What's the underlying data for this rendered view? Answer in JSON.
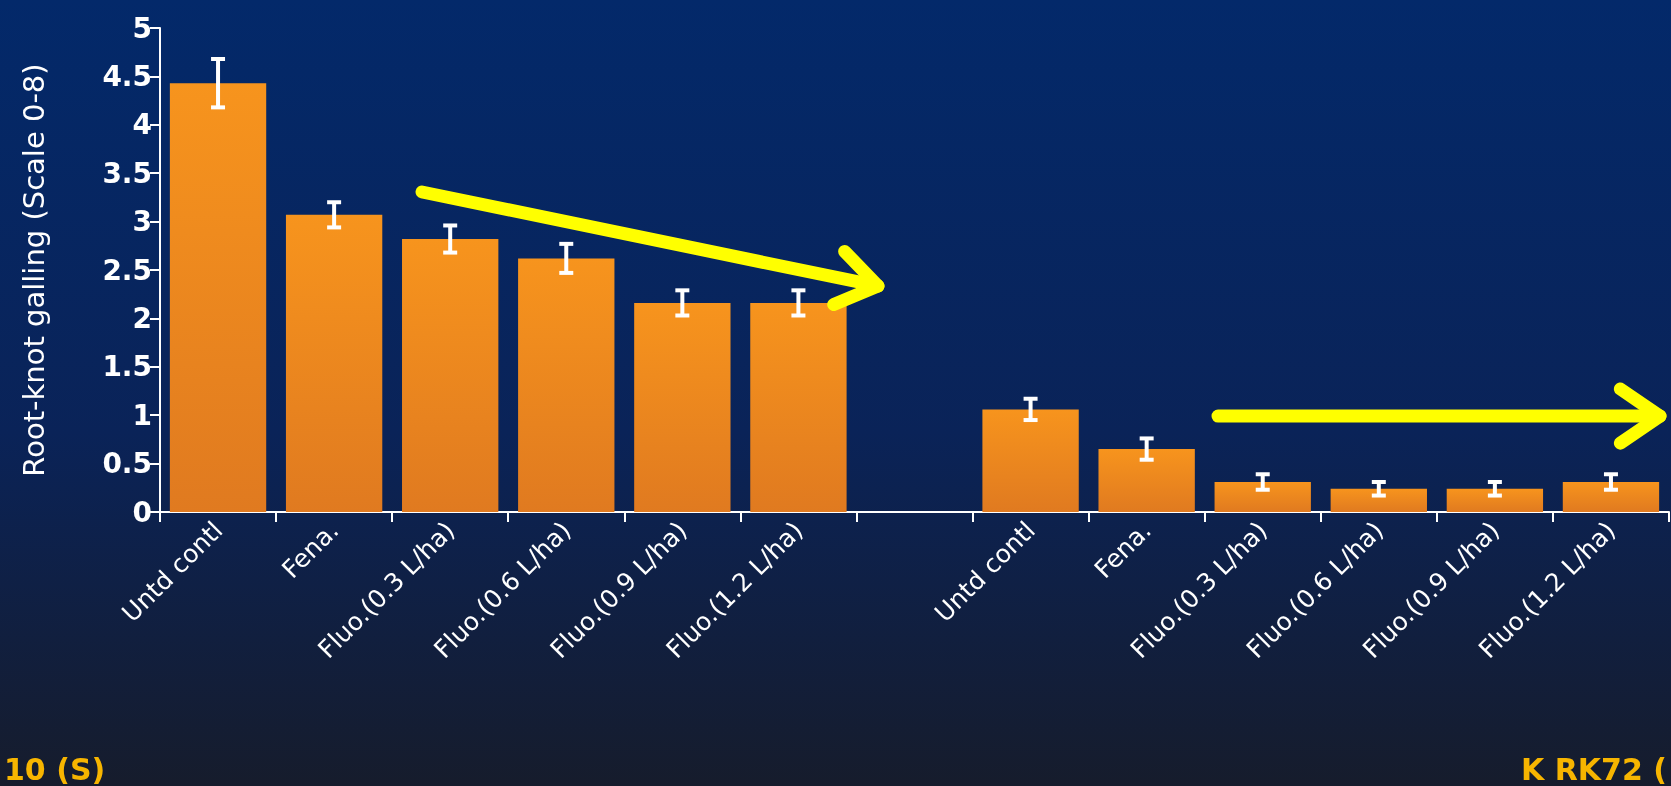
{
  "chart_data": {
    "type": "bar",
    "ylabel": "Root-knot galling (Scale 0-8)",
    "categories": [
      "Untd contl",
      "Fena.",
      "Fluo.(0.3 L/ha)",
      "Fluo.(0.6 L/ha)",
      "Fluo.(0.9 L/ha)",
      "Fluo.(1.2 L/ha)",
      null,
      "Untd contl",
      "Fena.",
      "Fluo.(0.3 L/ha)",
      "Fluo.(0.6 L/ha)",
      "Fluo.(0.9 L/ha)",
      "Fluo.(1.2 L/ha)"
    ],
    "values": [
      4.43,
      3.07,
      2.82,
      2.62,
      2.16,
      2.16,
      null,
      1.06,
      0.65,
      0.31,
      0.24,
      0.24,
      0.31
    ],
    "errors": [
      0.25,
      0.13,
      0.14,
      0.15,
      0.13,
      0.13,
      null,
      0.11,
      0.11,
      0.08,
      0.07,
      0.07,
      0.08
    ],
    "color": "#f7941d",
    "ylim": [
      0,
      5
    ],
    "yticks": [
      0,
      0.5,
      1,
      1.5,
      2,
      2.5,
      3,
      3.5,
      4,
      4.5,
      5
    ],
    "grid": false,
    "annotations": [
      "10 (S)",
      "K RK72 ("
    ]
  }
}
